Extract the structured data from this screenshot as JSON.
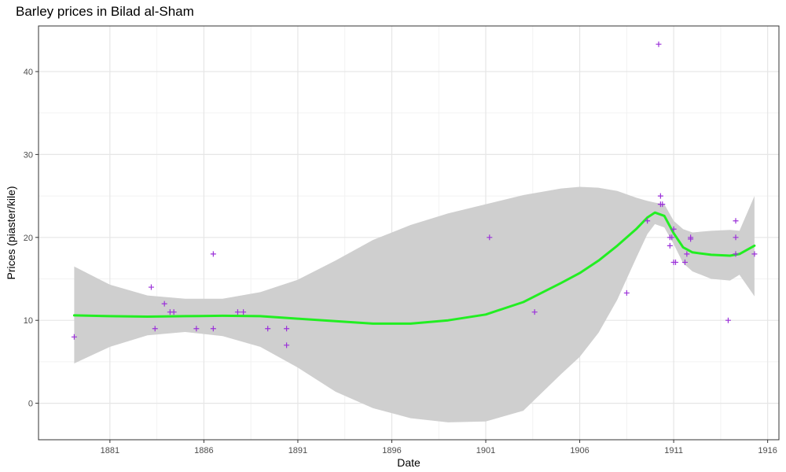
{
  "title": "Barley prices in Bilad al-Sham",
  "chart_data": {
    "type": "scatter",
    "title": "Barley prices in Bilad al-Sham",
    "xlabel": "Date",
    "ylabel": "Prices (piaster/kile)",
    "x_ticks": [
      1881,
      1886,
      1891,
      1896,
      1901,
      1906,
      1911,
      1916
    ],
    "y_ticks": [
      0,
      10,
      20,
      30,
      40
    ],
    "xlim": [
      1877.2,
      1916.6
    ],
    "ylim": [
      -4.4,
      45.5
    ],
    "grid": true,
    "colors": {
      "points": "#9b30d9",
      "smooth_line": "#22ee22",
      "confidence_band": "#cfcfcf",
      "panel_border": "#333333",
      "grid_major": "#e6e6e6",
      "grid_minor": "#f2f2f2"
    },
    "points": [
      {
        "x": 1879.1,
        "y": 8
      },
      {
        "x": 1883.2,
        "y": 14
      },
      {
        "x": 1883.4,
        "y": 9
      },
      {
        "x": 1883.9,
        "y": 12
      },
      {
        "x": 1884.2,
        "y": 11
      },
      {
        "x": 1884.4,
        "y": 11
      },
      {
        "x": 1885.6,
        "y": 9
      },
      {
        "x": 1886.5,
        "y": 18
      },
      {
        "x": 1886.5,
        "y": 9
      },
      {
        "x": 1887.8,
        "y": 11
      },
      {
        "x": 1888.1,
        "y": 11
      },
      {
        "x": 1889.4,
        "y": 9
      },
      {
        "x": 1890.4,
        "y": 9
      },
      {
        "x": 1890.4,
        "y": 7
      },
      {
        "x": 1901.2,
        "y": 20
      },
      {
        "x": 1903.6,
        "y": 11
      },
      {
        "x": 1908.5,
        "y": 13.3
      },
      {
        "x": 1909.6,
        "y": 22
      },
      {
        "x": 1910.2,
        "y": 43.3
      },
      {
        "x": 1910.3,
        "y": 25
      },
      {
        "x": 1910.3,
        "y": 24
      },
      {
        "x": 1910.4,
        "y": 24
      },
      {
        "x": 1910.8,
        "y": 20
      },
      {
        "x": 1910.9,
        "y": 20
      },
      {
        "x": 1910.8,
        "y": 19
      },
      {
        "x": 1911.0,
        "y": 21
      },
      {
        "x": 1911.0,
        "y": 17
      },
      {
        "x": 1911.1,
        "y": 17
      },
      {
        "x": 1911.6,
        "y": 17
      },
      {
        "x": 1911.7,
        "y": 18
      },
      {
        "x": 1911.9,
        "y": 20
      },
      {
        "x": 1911.9,
        "y": 19.8
      },
      {
        "x": 1913.9,
        "y": 10
      },
      {
        "x": 1914.3,
        "y": 22
      },
      {
        "x": 1914.3,
        "y": 20
      },
      {
        "x": 1914.3,
        "y": 18
      },
      {
        "x": 1915.3,
        "y": 18
      }
    ],
    "smooth": [
      {
        "x": 1879.1,
        "y": 10.6,
        "lo": 4.8,
        "hi": 16.5
      },
      {
        "x": 1881.0,
        "y": 10.5,
        "lo": 6.8,
        "hi": 14.3
      },
      {
        "x": 1883.0,
        "y": 10.45,
        "lo": 8.2,
        "hi": 13.0
      },
      {
        "x": 1885.0,
        "y": 10.5,
        "lo": 8.6,
        "hi": 12.6
      },
      {
        "x": 1887.0,
        "y": 10.55,
        "lo": 8.1,
        "hi": 12.6
      },
      {
        "x": 1889.0,
        "y": 10.5,
        "lo": 6.8,
        "hi": 13.4
      },
      {
        "x": 1891.0,
        "y": 10.2,
        "lo": 4.3,
        "hi": 14.9
      },
      {
        "x": 1893.0,
        "y": 9.9,
        "lo": 1.4,
        "hi": 17.2
      },
      {
        "x": 1895.0,
        "y": 9.6,
        "lo": -0.6,
        "hi": 19.7
      },
      {
        "x": 1897.0,
        "y": 9.6,
        "lo": -1.8,
        "hi": 21.5
      },
      {
        "x": 1899.0,
        "y": 10.0,
        "lo": -2.3,
        "hi": 22.9
      },
      {
        "x": 1901.0,
        "y": 10.7,
        "lo": -2.2,
        "hi": 24.0
      },
      {
        "x": 1903.0,
        "y": 12.2,
        "lo": -0.9,
        "hi": 25.1
      },
      {
        "x": 1905.0,
        "y": 14.5,
        "lo": 3.5,
        "hi": 25.9
      },
      {
        "x": 1906.0,
        "y": 15.7,
        "lo": 5.6,
        "hi": 26.1
      },
      {
        "x": 1907.0,
        "y": 17.2,
        "lo": 8.5,
        "hi": 26.0
      },
      {
        "x": 1908.0,
        "y": 19.0,
        "lo": 12.5,
        "hi": 25.6
      },
      {
        "x": 1909.0,
        "y": 21.0,
        "lo": 17.5,
        "hi": 24.8
      },
      {
        "x": 1909.6,
        "y": 22.4,
        "lo": 20.4,
        "hi": 24.4
      },
      {
        "x": 1910.0,
        "y": 23.0,
        "lo": 21.6,
        "hi": 24.2
      },
      {
        "x": 1910.5,
        "y": 22.6,
        "lo": 21.2,
        "hi": 24.0
      },
      {
        "x": 1911.0,
        "y": 20.5,
        "lo": 19.2,
        "hi": 22.0
      },
      {
        "x": 1911.5,
        "y": 18.8,
        "lo": 16.9,
        "hi": 21.0
      },
      {
        "x": 1912.0,
        "y": 18.2,
        "lo": 15.9,
        "hi": 20.6
      },
      {
        "x": 1913.0,
        "y": 17.9,
        "lo": 15.0,
        "hi": 20.8
      },
      {
        "x": 1914.0,
        "y": 17.8,
        "lo": 14.8,
        "hi": 20.9
      },
      {
        "x": 1914.5,
        "y": 18.0,
        "lo": 15.5,
        "hi": 20.8
      },
      {
        "x": 1915.3,
        "y": 19.0,
        "lo": 12.9,
        "hi": 25.0
      }
    ]
  }
}
